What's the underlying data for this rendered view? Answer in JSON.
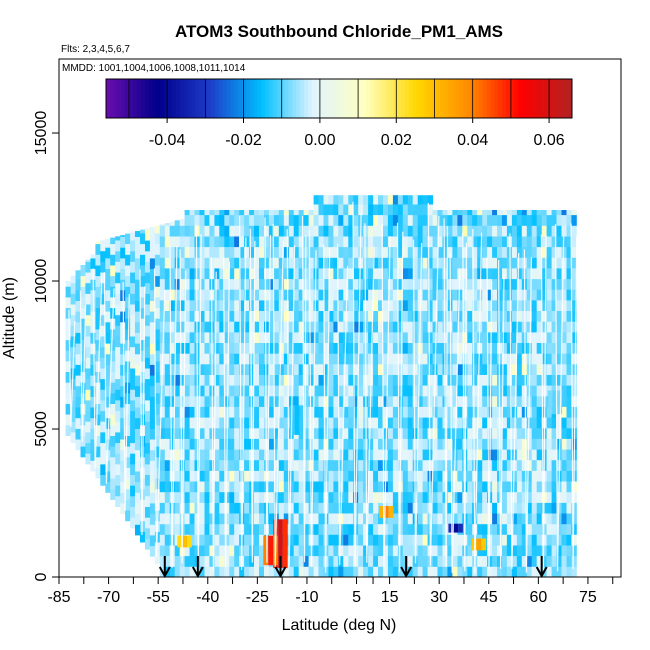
{
  "chart_data": {
    "type": "heatmap",
    "title": "ATOM3 Southbound Chloride_PM1_AMS",
    "flights_label": "Flts: 2,3,4,5,6,7",
    "dates_label": "MMDD: 1001,1004,1006,1008,1011,1014",
    "xlabel": "Latitude (deg N)",
    "ylabel": "Altitude (m)",
    "xlim": [
      -85,
      85
    ],
    "ylim": [
      0,
      17500
    ],
    "x_ticks": [
      "-85",
      "-70",
      "-55",
      "-40",
      "-25",
      "-10",
      "5",
      "15",
      "30",
      "45",
      "60",
      "75"
    ],
    "x_tick_values": [
      -85,
      -70,
      -55,
      -40,
      -25,
      -10,
      5,
      15,
      30,
      45,
      60,
      75
    ],
    "x_minor_ticks": [
      -77.5,
      -62.5,
      -47.5,
      -32.5,
      -17.5,
      -2.5,
      10,
      22.5,
      37.5,
      52.5,
      67.5,
      82.5
    ],
    "y_ticks": [
      "0",
      "5000",
      "10000",
      "15000"
    ],
    "y_tick_values": [
      0,
      5000,
      10000,
      15000
    ],
    "colorbar": {
      "min": -0.056,
      "max": 0.066,
      "ticks": [
        "-0.04",
        "-0.02",
        "0.00",
        "0.02",
        "0.04",
        "0.06"
      ],
      "tick_values": [
        -0.04,
        -0.02,
        0.0,
        0.02,
        0.04,
        0.06
      ],
      "colors": [
        "#6a0dad",
        "#00008b",
        "#1e3cc8",
        "#00bfff",
        "#e0f4ff",
        "#ffffc0",
        "#ffd700",
        "#ff8c00",
        "#ff0000",
        "#b22222"
      ]
    },
    "data_extent": {
      "lat_min": -83,
      "lat_max": 71,
      "alt_min": 0,
      "alt_max": 12900
    },
    "hotspots": [
      {
        "lat": -18,
        "alt_min": 300,
        "alt_max": 1950,
        "value": 0.06
      },
      {
        "lat": -21,
        "alt_min": 400,
        "alt_max": 1400,
        "value": 0.05
      },
      {
        "lat": -47,
        "alt_min": 1000,
        "alt_max": 1400,
        "value": 0.03
      },
      {
        "lat": 14,
        "alt_min": 2000,
        "alt_max": 2400,
        "value": 0.04
      },
      {
        "lat": 42,
        "alt_min": 900,
        "alt_max": 1300,
        "value": 0.035
      },
      {
        "lat": 35,
        "alt_min": 1500,
        "alt_max": 1800,
        "value": -0.04
      },
      {
        "lat": -13,
        "alt_min": 4800,
        "alt_max": 5800,
        "value": -0.015
      },
      {
        "lat": 65,
        "alt_min": 5500,
        "alt_max": 6300,
        "value": -0.01
      }
    ],
    "arrows_lat": [
      -53,
      -43,
      -18,
      20,
      61
    ]
  }
}
